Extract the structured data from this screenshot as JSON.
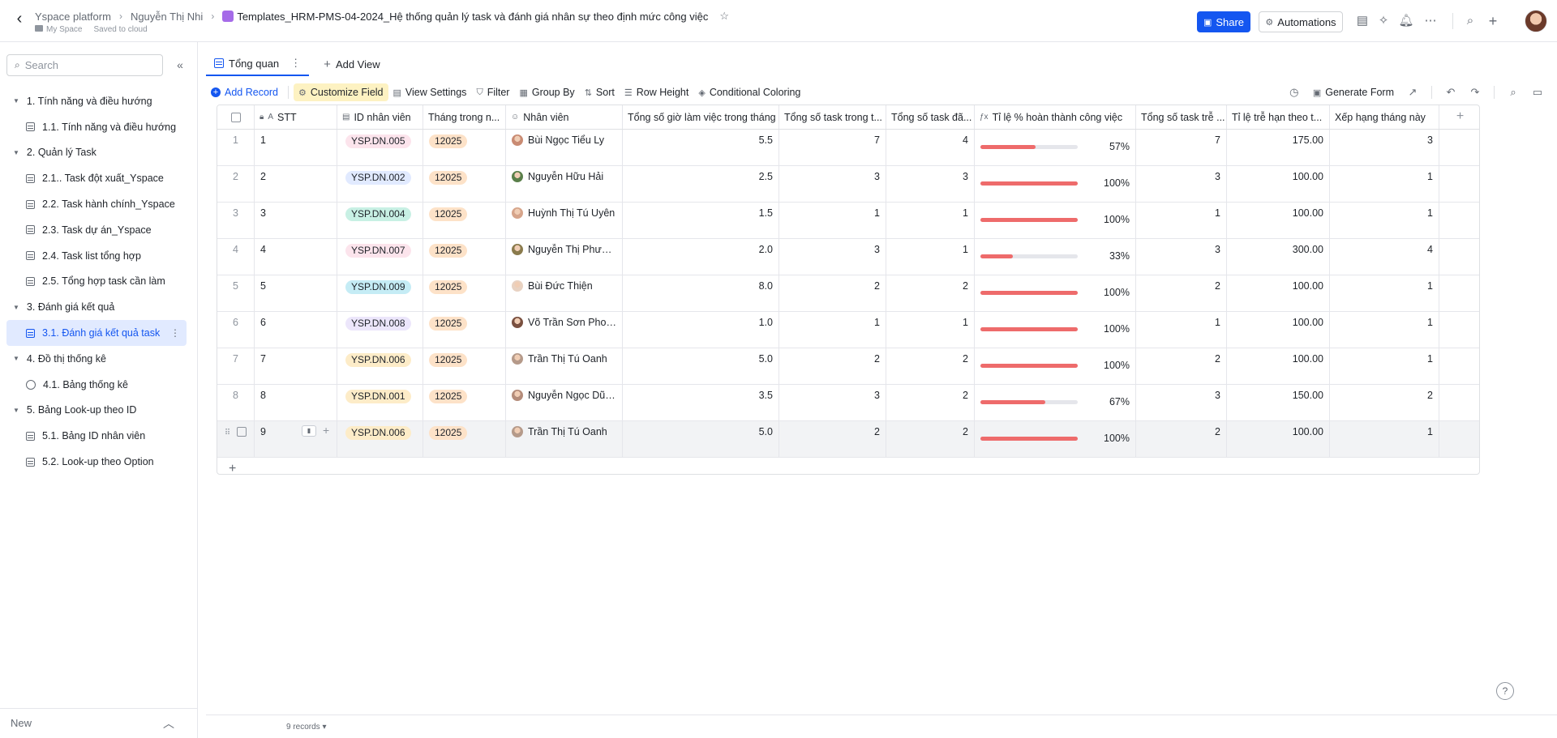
{
  "breadcrumb": {
    "workspace": "Yspace platform",
    "owner": "Nguyễn Thị Nhi",
    "doc_title": "Templates_HRM-PMS-04-2024_Hệ thống quản lý task và đánh giá nhân sự theo định mức công việc",
    "space": "My Space",
    "save_status": "Saved to cloud"
  },
  "header": {
    "share_label": "Share",
    "automations_label": "Automations",
    "accent_color": "#1456f0"
  },
  "sidebar": {
    "search_placeholder": "Search",
    "groups": [
      {
        "label": "1. Tính năng và điều hướng",
        "items": [
          "1.1. Tính năng và điều hướng"
        ]
      },
      {
        "label": "2. Quản lý Task",
        "items": [
          "2.1.. Task đột xuất_Yspace",
          "2.2. Task hành chính_Yspace",
          "2.3. Task dự án_Yspace",
          "2.4. Task list tổng hợp",
          "2.5. Tổng hợp task cần làm"
        ]
      },
      {
        "label": "3. Đánh giá kết quả",
        "items": [
          "3.1. Đánh giá kết quả task"
        ]
      },
      {
        "label": "4. Đồ thị thống kê",
        "items": [
          "4.1. Bảng thống kê"
        ]
      },
      {
        "label": "5. Bảng Look-up theo ID",
        "items": [
          "5.1. Bảng ID nhân viên",
          "5.2. Look-up theo Option"
        ]
      }
    ],
    "new_label": "New"
  },
  "view": {
    "tab_label": "Tổng quan",
    "add_view_label": "Add View"
  },
  "toolbar": {
    "add_record": "Add Record",
    "customize_field": "Customize Field",
    "view_settings": "View Settings",
    "filter": "Filter",
    "group_by": "Group By",
    "sort": "Sort",
    "row_height": "Row Height",
    "conditional_coloring": "Conditional Coloring",
    "generate_form": "Generate Form"
  },
  "table": {
    "columns": [
      "STT",
      "ID nhân viên",
      "Tháng trong n...",
      "Nhân viên",
      "Tổng số giờ làm việc trong tháng",
      "Tổng số task trong t...",
      "Tổng số task đã...",
      "Tỉ lệ % hoàn thành công việc",
      "Tổng số task trễ ...",
      "Tỉ lệ trễ hạn theo t...",
      "Xếp hạng tháng này"
    ],
    "rows": [
      {
        "idx": "1",
        "stt": "1",
        "id": "YSP.DN.005",
        "id_color": "#fce4ec",
        "month": "12025",
        "name": "Bùi Ngọc Tiểu Ly",
        "hours": "5.5",
        "tasks": "7",
        "done": "4",
        "pct_value": 57,
        "pct": "57%",
        "late": "7",
        "late_rate": "175.00",
        "rank": "3"
      },
      {
        "idx": "2",
        "stt": "2",
        "id": "YSP.DN.002",
        "id_color": "#e1eaff",
        "month": "12025",
        "name": "Nguyễn Hữu Hải",
        "hours": "2.5",
        "tasks": "3",
        "done": "3",
        "pct_value": 100,
        "pct": "100%",
        "late": "3",
        "late_rate": "100.00",
        "rank": "1"
      },
      {
        "idx": "3",
        "stt": "3",
        "id": "YSP.DN.004",
        "id_color": "#c8f0e4",
        "month": "12025",
        "name": "Huỳnh Thị Tú Uyên",
        "hours": "1.5",
        "tasks": "1",
        "done": "1",
        "pct_value": 100,
        "pct": "100%",
        "late": "1",
        "late_rate": "100.00",
        "rank": "1"
      },
      {
        "idx": "4",
        "stt": "4",
        "id": "YSP.DN.007",
        "id_color": "#fce4ec",
        "month": "12025",
        "name": "Nguyễn Thị Phương...",
        "hours": "2.0",
        "tasks": "3",
        "done": "1",
        "pct_value": 33,
        "pct": "33%",
        "late": "3",
        "late_rate": "300.00",
        "rank": "4"
      },
      {
        "idx": "5",
        "stt": "5",
        "id": "YSP.DN.009",
        "id_color": "#c5ecf5",
        "month": "12025",
        "name": "Bùi Đức Thiện",
        "hours": "8.0",
        "tasks": "2",
        "done": "2",
        "pct_value": 100,
        "pct": "100%",
        "late": "2",
        "late_rate": "100.00",
        "rank": "1"
      },
      {
        "idx": "6",
        "stt": "6",
        "id": "YSP.DN.008",
        "id_color": "#ece6fb",
        "month": "12025",
        "name": "Võ Trần Sơn Phong",
        "hours": "1.0",
        "tasks": "1",
        "done": "1",
        "pct_value": 100,
        "pct": "100%",
        "late": "1",
        "late_rate": "100.00",
        "rank": "1"
      },
      {
        "idx": "7",
        "stt": "7",
        "id": "YSP.DN.006",
        "id_color": "#fdecc8",
        "month": "12025",
        "name": "Trần Thị Tú Oanh",
        "hours": "5.0",
        "tasks": "2",
        "done": "2",
        "pct_value": 100,
        "pct": "100%",
        "late": "2",
        "late_rate": "100.00",
        "rank": "1"
      },
      {
        "idx": "8",
        "stt": "8",
        "id": "YSP.DN.001",
        "id_color": "#fdecc8",
        "month": "12025",
        "name": "Nguyễn Ngọc Dũng",
        "hours": "3.5",
        "tasks": "3",
        "done": "2",
        "pct_value": 67,
        "pct": "67%",
        "late": "3",
        "late_rate": "150.00",
        "rank": "2"
      },
      {
        "idx": "",
        "stt": "9",
        "id": "YSP.DN.006",
        "id_color": "#fdecc8",
        "month": "12025",
        "name": "Trần Thị Tú Oanh",
        "hours": "5.0",
        "tasks": "2",
        "done": "2",
        "pct_value": 100,
        "pct": "100%",
        "late": "2",
        "late_rate": "100.00",
        "rank": "1"
      }
    ],
    "month_tag_color": "#fde2c8",
    "progress_color": "#ee6b6b"
  },
  "footer": {
    "record_count": "9 records"
  }
}
